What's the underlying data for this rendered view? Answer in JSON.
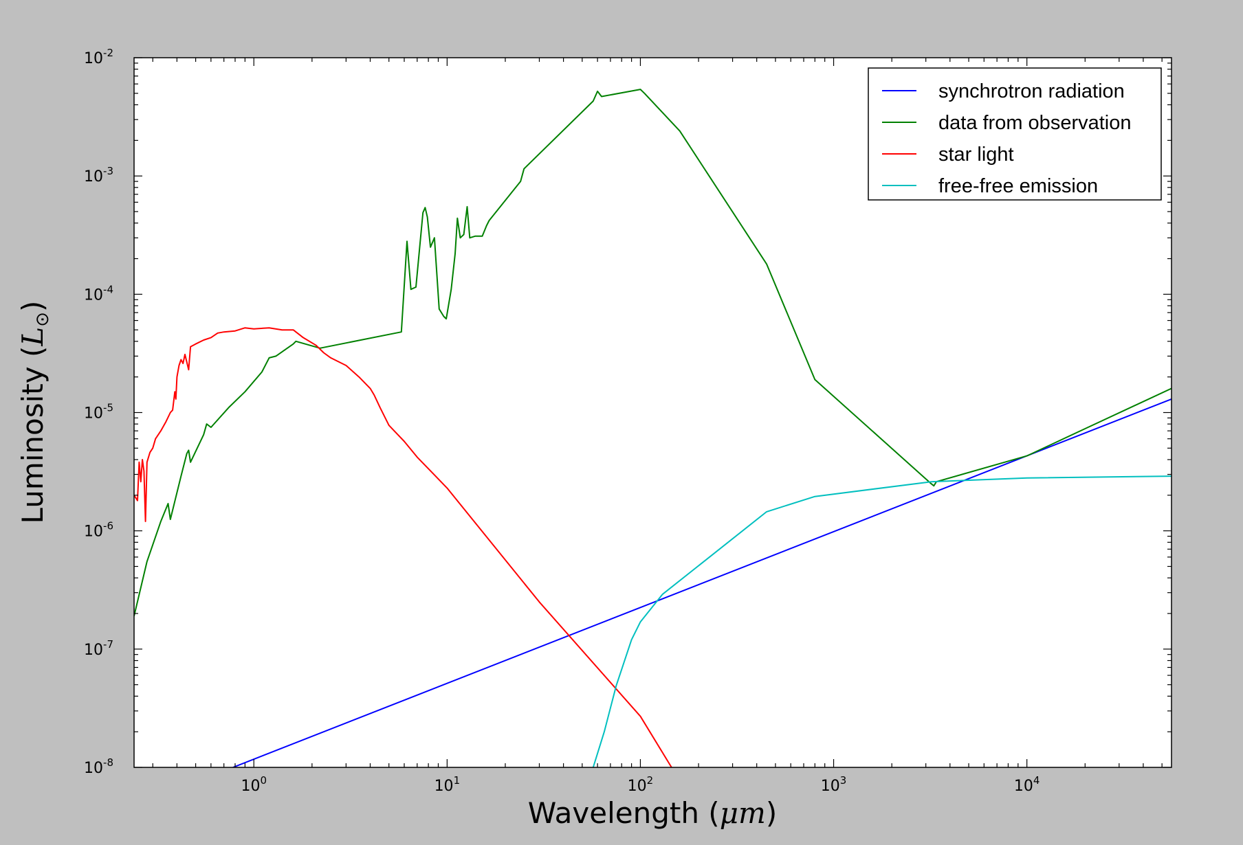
{
  "chart_data": {
    "type": "line",
    "xscale": "log",
    "yscale": "log",
    "xlim": [
      0.24,
      56000
    ],
    "ylim": [
      1e-08,
      0.01
    ],
    "xlabel": "Wavelength (μm)",
    "ylabel": "Luminosity (L⊙)",
    "xlabel_parts": {
      "text": "Wavelength (",
      "math": "μm",
      "close": ")"
    },
    "ylabel_parts": {
      "text": "Luminosity (",
      "math": "L",
      "sub": "⊙",
      "close": ")"
    },
    "x_ticks": [
      {
        "base": "10",
        "exp": "0",
        "value": 1
      },
      {
        "base": "10",
        "exp": "1",
        "value": 10
      },
      {
        "base": "10",
        "exp": "2",
        "value": 100
      },
      {
        "base": "10",
        "exp": "3",
        "value": 1000
      },
      {
        "base": "10",
        "exp": "4",
        "value": 10000
      }
    ],
    "y_ticks": [
      {
        "base": "10",
        "exp": "-8",
        "value": 1e-08
      },
      {
        "base": "10",
        "exp": "-7",
        "value": 1e-07
      },
      {
        "base": "10",
        "exp": "-6",
        "value": 1e-06
      },
      {
        "base": "10",
        "exp": "-5",
        "value": 1e-05
      },
      {
        "base": "10",
        "exp": "-4",
        "value": 0.0001
      },
      {
        "base": "10",
        "exp": "-3",
        "value": 0.001
      },
      {
        "base": "10",
        "exp": "-2",
        "value": 0.01
      }
    ],
    "grid": false,
    "legend_position": "top-right",
    "series": [
      {
        "name": "synchrotron radiation",
        "color": "#0000ff",
        "points": [
          [
            0.78,
            1e-08
          ],
          [
            56000,
            1.3e-05
          ]
        ]
      },
      {
        "name": "data from observation",
        "color": "#008000",
        "points": [
          [
            0.24,
            1.9e-07
          ],
          [
            0.28,
            5.5e-07
          ],
          [
            0.33,
            1.2e-06
          ],
          [
            0.36,
            1.7e-06
          ],
          [
            0.37,
            1.25e-06
          ],
          [
            0.42,
            2.9e-06
          ],
          [
            0.45,
            4.5e-06
          ],
          [
            0.46,
            4.8e-06
          ],
          [
            0.47,
            3.8e-06
          ],
          [
            0.55,
            6.5e-06
          ],
          [
            0.57,
            8e-06
          ],
          [
            0.6,
            7.5e-06
          ],
          [
            0.74,
            1.1e-05
          ],
          [
            0.9,
            1.5e-05
          ],
          [
            1.1,
            2.2e-05
          ],
          [
            1.2,
            2.9e-05
          ],
          [
            1.3,
            3e-05
          ],
          [
            1.6,
            3.8e-05
          ],
          [
            1.65,
            4e-05
          ],
          [
            2.2,
            3.5e-05
          ],
          [
            5.8,
            4.8e-05
          ],
          [
            6.2,
            0.00028
          ],
          [
            6.5,
            0.00011
          ],
          [
            6.9,
            0.000115
          ],
          [
            7.5,
            0.00049
          ],
          [
            7.7,
            0.00054
          ],
          [
            7.9,
            0.00045
          ],
          [
            8.2,
            0.00025
          ],
          [
            8.6,
            0.0003
          ],
          [
            9.1,
            7.5e-05
          ],
          [
            9.6,
            6.5e-05
          ],
          [
            9.9,
            6.2e-05
          ],
          [
            10.5,
            0.00011
          ],
          [
            11.0,
            0.00022
          ],
          [
            11.3,
            0.00044
          ],
          [
            11.7,
            0.0003
          ],
          [
            12.2,
            0.00032
          ],
          [
            12.7,
            0.00055
          ],
          [
            13.1,
            0.0003
          ],
          [
            14,
            0.00031
          ],
          [
            15.2,
            0.00031
          ],
          [
            16,
            0.00038
          ],
          [
            16.5,
            0.00042
          ],
          [
            24,
            0.0009
          ],
          [
            25,
            0.00115
          ],
          [
            57,
            0.0043
          ],
          [
            60,
            0.0052
          ],
          [
            63,
            0.0047
          ],
          [
            100,
            0.0054
          ],
          [
            105,
            0.005
          ],
          [
            160,
            0.0024
          ],
          [
            450,
            0.00018
          ],
          [
            800,
            1.9e-05
          ],
          [
            3200,
            2.5e-06
          ],
          [
            3300,
            2.4e-06
          ],
          [
            3400,
            2.6e-06
          ],
          [
            10000,
            4.3e-06
          ],
          [
            20000,
            7.3e-06
          ],
          [
            56000,
            1.6e-05
          ]
        ]
      },
      {
        "name": "star light",
        "color": "#ff0000",
        "points": [
          [
            0.24,
            2e-06
          ],
          [
            0.25,
            1.8e-06
          ],
          [
            0.255,
            3.8e-06
          ],
          [
            0.26,
            2.6e-06
          ],
          [
            0.265,
            4e-06
          ],
          [
            0.27,
            3.2e-06
          ],
          [
            0.275,
            1.2e-06
          ],
          [
            0.28,
            3.8e-06
          ],
          [
            0.29,
            4.6e-06
          ],
          [
            0.3,
            5e-06
          ],
          [
            0.31,
            6e-06
          ],
          [
            0.33,
            7e-06
          ],
          [
            0.35,
            8.3e-06
          ],
          [
            0.37,
            1e-05
          ],
          [
            0.38,
            1.05e-05
          ],
          [
            0.39,
            1.5e-05
          ],
          [
            0.395,
            1.3e-05
          ],
          [
            0.4,
            2e-05
          ],
          [
            0.41,
            2.5e-05
          ],
          [
            0.42,
            2.8e-05
          ],
          [
            0.43,
            2.6e-05
          ],
          [
            0.44,
            3.1e-05
          ],
          [
            0.46,
            2.3e-05
          ],
          [
            0.47,
            3.6e-05
          ],
          [
            0.5,
            3.8e-05
          ],
          [
            0.55,
            4.1e-05
          ],
          [
            0.6,
            4.3e-05
          ],
          [
            0.65,
            4.7e-05
          ],
          [
            0.7,
            4.8e-05
          ],
          [
            0.8,
            4.9e-05
          ],
          [
            0.9,
            5.2e-05
          ],
          [
            1.0,
            5.1e-05
          ],
          [
            1.2,
            5.2e-05
          ],
          [
            1.4,
            5e-05
          ],
          [
            1.6,
            5e-05
          ],
          [
            1.8,
            4.3e-05
          ],
          [
            2.1,
            3.7e-05
          ],
          [
            2.3,
            3.2e-05
          ],
          [
            2.5,
            2.9e-05
          ],
          [
            3.0,
            2.5e-05
          ],
          [
            3.5,
            2e-05
          ],
          [
            4.0,
            1.6e-05
          ],
          [
            4.2,
            1.4e-05
          ],
          [
            4.5,
            1.1e-05
          ],
          [
            5.0,
            7.8e-06
          ],
          [
            6.0,
            5.7e-06
          ],
          [
            7.0,
            4.2e-06
          ],
          [
            10,
            2.3e-06
          ],
          [
            30,
            2.5e-07
          ],
          [
            100,
            2.7e-08
          ],
          [
            145,
            1e-08
          ]
        ]
      },
      {
        "name": "free-free emission",
        "color": "#00bfbf",
        "points": [
          [
            57,
            1e-08
          ],
          [
            65,
            2e-08
          ],
          [
            75,
            4.9e-08
          ],
          [
            90,
            1.2e-07
          ],
          [
            100,
            1.7e-07
          ],
          [
            130,
            2.9e-07
          ],
          [
            450,
            1.45e-06
          ],
          [
            800,
            1.95e-06
          ],
          [
            3200,
            2.6e-06
          ],
          [
            10000,
            2.8e-06
          ],
          [
            56000,
            2.9e-06
          ]
        ]
      }
    ]
  }
}
